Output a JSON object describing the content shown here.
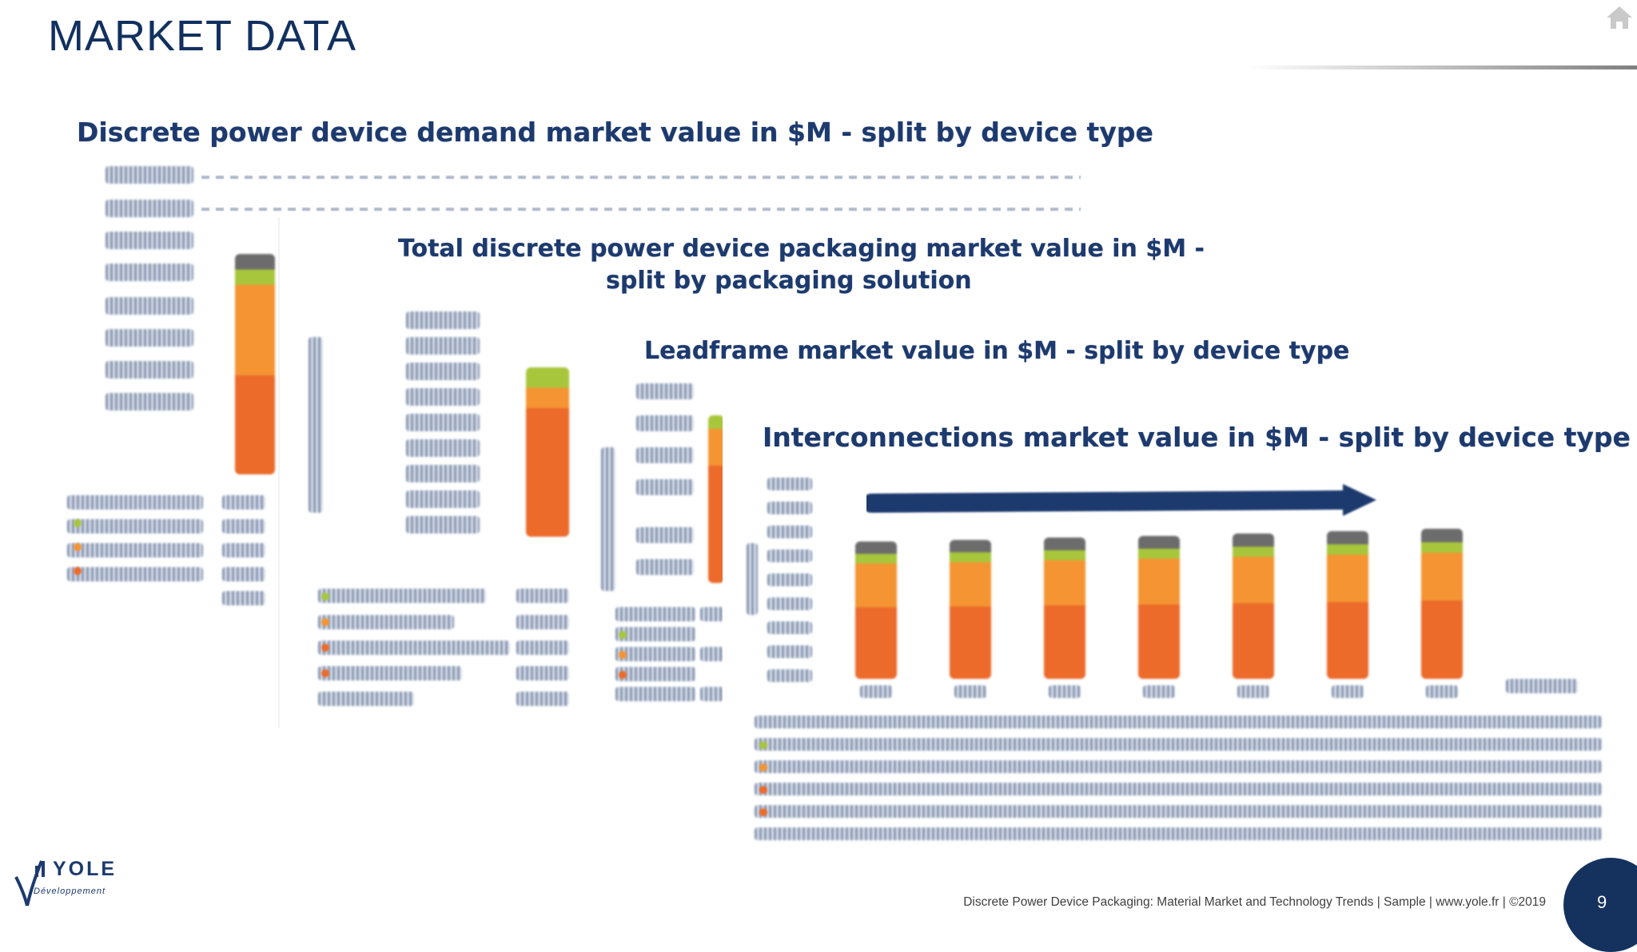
{
  "header": {
    "title": "MARKET DATA",
    "home_icon": "home-icon"
  },
  "panels": [
    {
      "title": "Discrete power device demand market value in $M - split by device type"
    },
    {
      "title_line1": "Total discrete power device packaging market value in $M -",
      "title_line2": "split by packaging solution"
    },
    {
      "title": "Leadframe market value in $M - split by device type"
    },
    {
      "title": "Interconnections market value in $M - split by device type"
    }
  ],
  "colors": {
    "navy": "#1d3a6e",
    "bar_dark_orange": "#ec6a2a",
    "bar_orange": "#f49432",
    "bar_green": "#a8c63c",
    "bar_gray": "#6c6c6c",
    "page_circle": "#15325f"
  },
  "footer": {
    "text": "Discrete Power Device Packaging: Material Market and Technology Trends | Sample | www.yole.fr | ©2019",
    "page_number": "9"
  },
  "logo": {
    "name": "YOLE",
    "sub": "Développement"
  }
}
